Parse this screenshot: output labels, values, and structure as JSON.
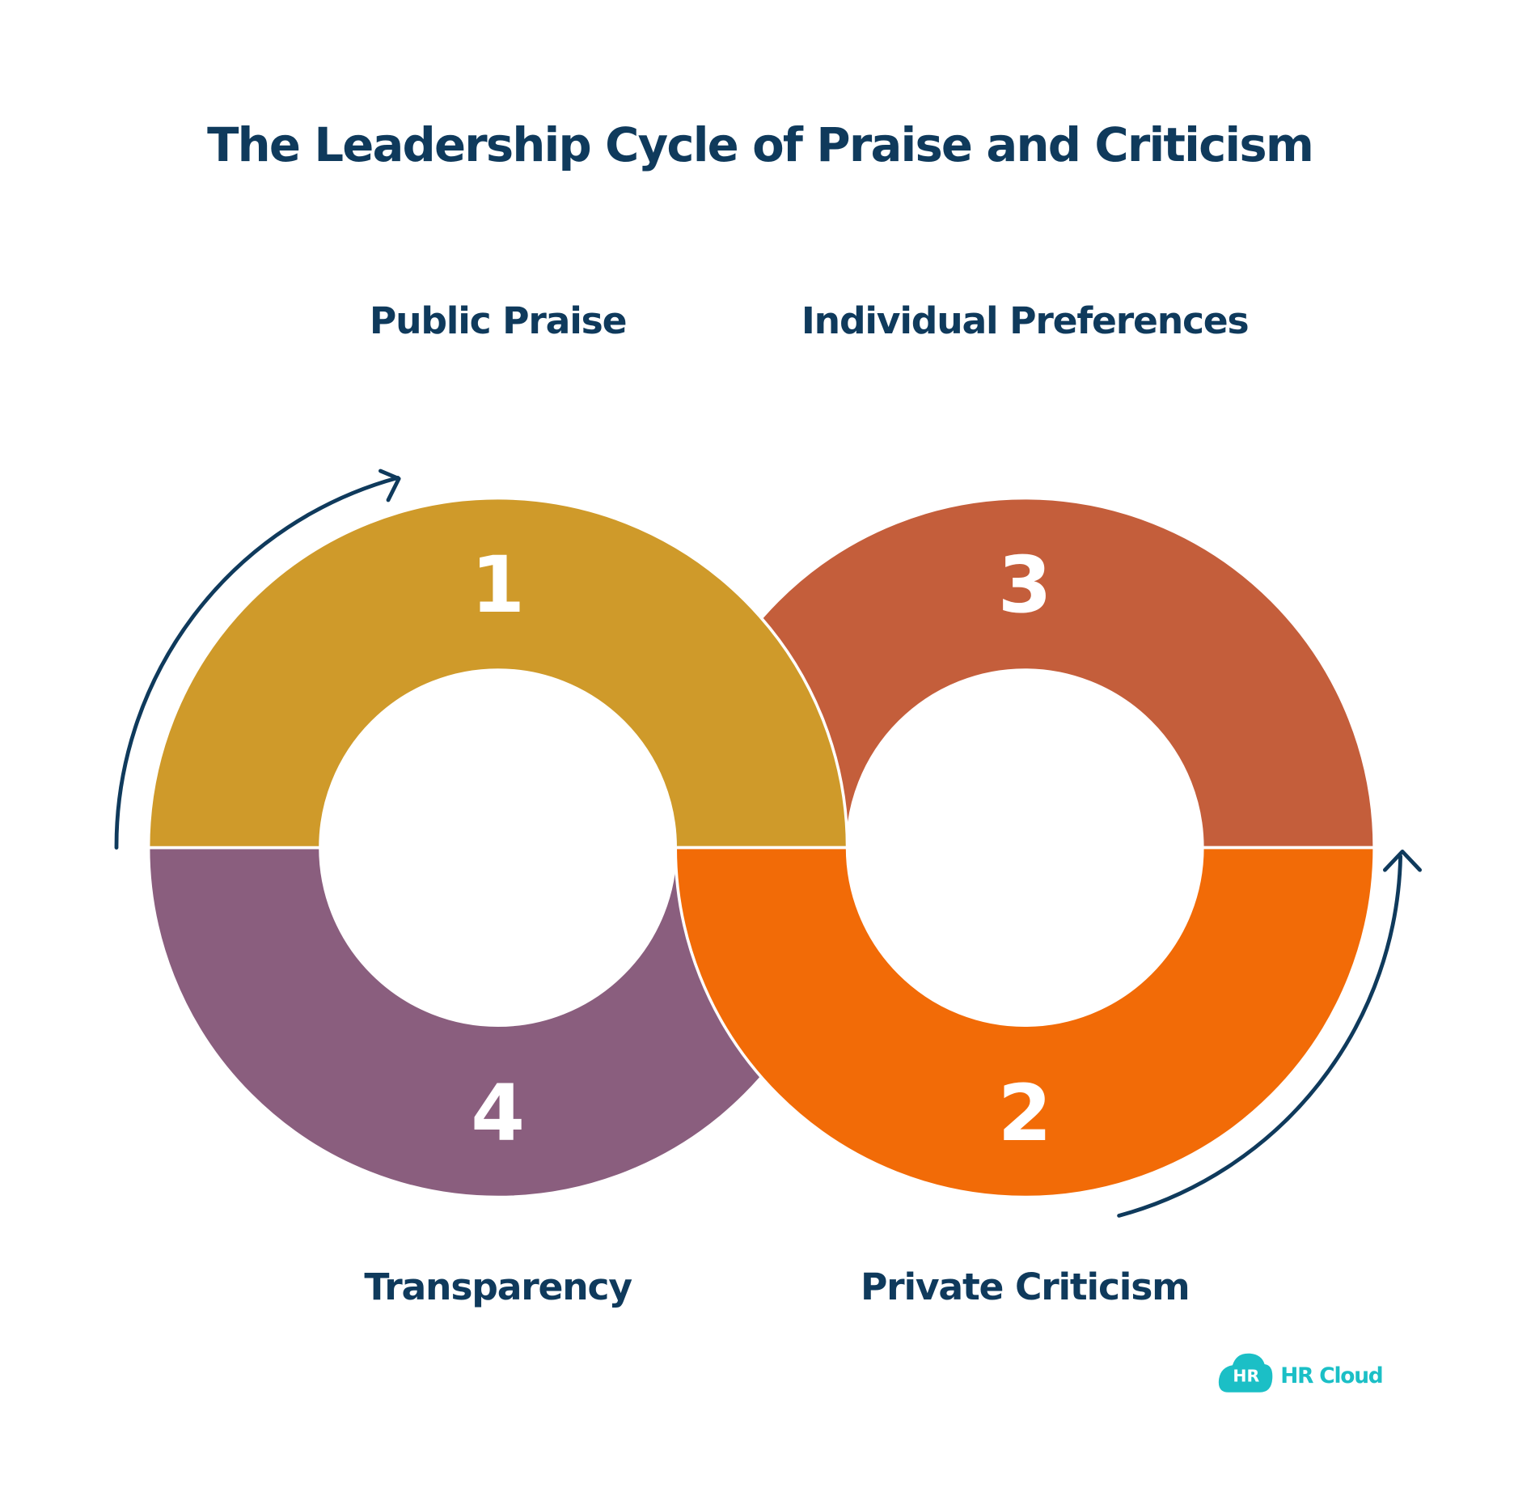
{
  "title": "The Leadership Cycle of Praise and Criticism",
  "steps": [
    {
      "number": "1",
      "label": "Public Praise"
    },
    {
      "number": "2",
      "label": "Private Criticism"
    },
    {
      "number": "3",
      "label": "Individual Preferences"
    },
    {
      "number": "4",
      "label": "Transparency"
    }
  ],
  "logo": {
    "icon": "HR",
    "text": "HR Cloud"
  }
}
